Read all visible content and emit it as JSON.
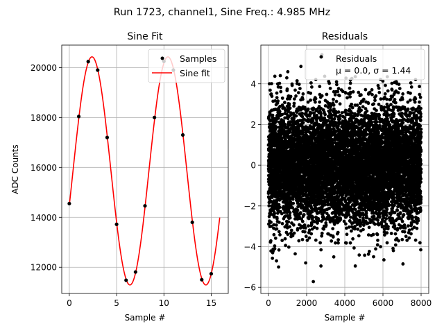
{
  "figure": {
    "suptitle": "Run 1723, channel1, Sine Freq.: 4.985 MHz"
  },
  "chart_data": [
    {
      "type": "scatter",
      "title": "Sine Fit",
      "xlabel": "Sample #",
      "ylabel": "ADC Counts",
      "xlim": [
        -0.8,
        16.8
      ],
      "ylim": [
        10950,
        20900
      ],
      "xticks": [
        0,
        5,
        10,
        15
      ],
      "yticks": [
        12000,
        14000,
        16000,
        18000,
        20000
      ],
      "grid": true,
      "legend_position": "top-right",
      "legend": [
        "Samples",
        "Sine fit"
      ],
      "series": [
        {
          "name": "Samples",
          "kind": "points",
          "color": "#000000",
          "x": [
            0,
            1,
            2,
            3,
            4,
            5,
            6,
            7,
            8,
            9,
            10,
            11,
            12,
            13,
            14,
            15
          ],
          "y": [
            14550,
            18040,
            20240,
            19900,
            17200,
            13720,
            11480,
            11810,
            14460,
            18000,
            20250,
            19900,
            17300,
            13800,
            11500,
            11740
          ]
        },
        {
          "name": "Sine fit",
          "kind": "line",
          "color": "#ff0000",
          "model": {
            "offset": 15860,
            "amplitude": 4570,
            "period": 8.024,
            "phase": -0.306
          },
          "x_range": [
            0,
            15.9
          ]
        }
      ]
    },
    {
      "type": "scatter",
      "title": "Residuals",
      "xlabel": "Sample #",
      "ylabel": "",
      "xlim": [
        -400,
        8400
      ],
      "ylim": [
        -6.3,
        5.9
      ],
      "xticks": [
        0,
        2000,
        4000,
        6000,
        8000
      ],
      "yticks": [
        -6,
        -4,
        -2,
        0,
        2,
        4
      ],
      "grid": true,
      "legend_position": "top-right",
      "legend": [
        "Residuals",
        "μ = 0.0, σ = 1.44"
      ],
      "series": [
        {
          "name": "Residuals",
          "kind": "points",
          "color": "#000000",
          "count": 8000,
          "mean": 0.0,
          "sigma": 1.44,
          "x_range": [
            0,
            7999
          ],
          "outliers": [
            {
              "x": 2350,
              "y": -5.72
            },
            {
              "x": 2800,
              "y": 5.43
            },
            {
              "x": 420,
              "y": -4.7
            },
            {
              "x": 2750,
              "y": -4.95
            },
            {
              "x": 4550,
              "y": -4.95
            },
            {
              "x": 7050,
              "y": -4.85
            },
            {
              "x": 6050,
              "y": -4.65
            },
            {
              "x": 1950,
              "y": -4.8
            },
            {
              "x": 1700,
              "y": 4.85
            },
            {
              "x": 620,
              "y": 4.4
            },
            {
              "x": 4550,
              "y": 4.35
            },
            {
              "x": 50,
              "y": 4.0
            },
            {
              "x": 6700,
              "y": 4.1
            },
            {
              "x": 530,
              "y": -5.0
            }
          ]
        }
      ]
    }
  ]
}
